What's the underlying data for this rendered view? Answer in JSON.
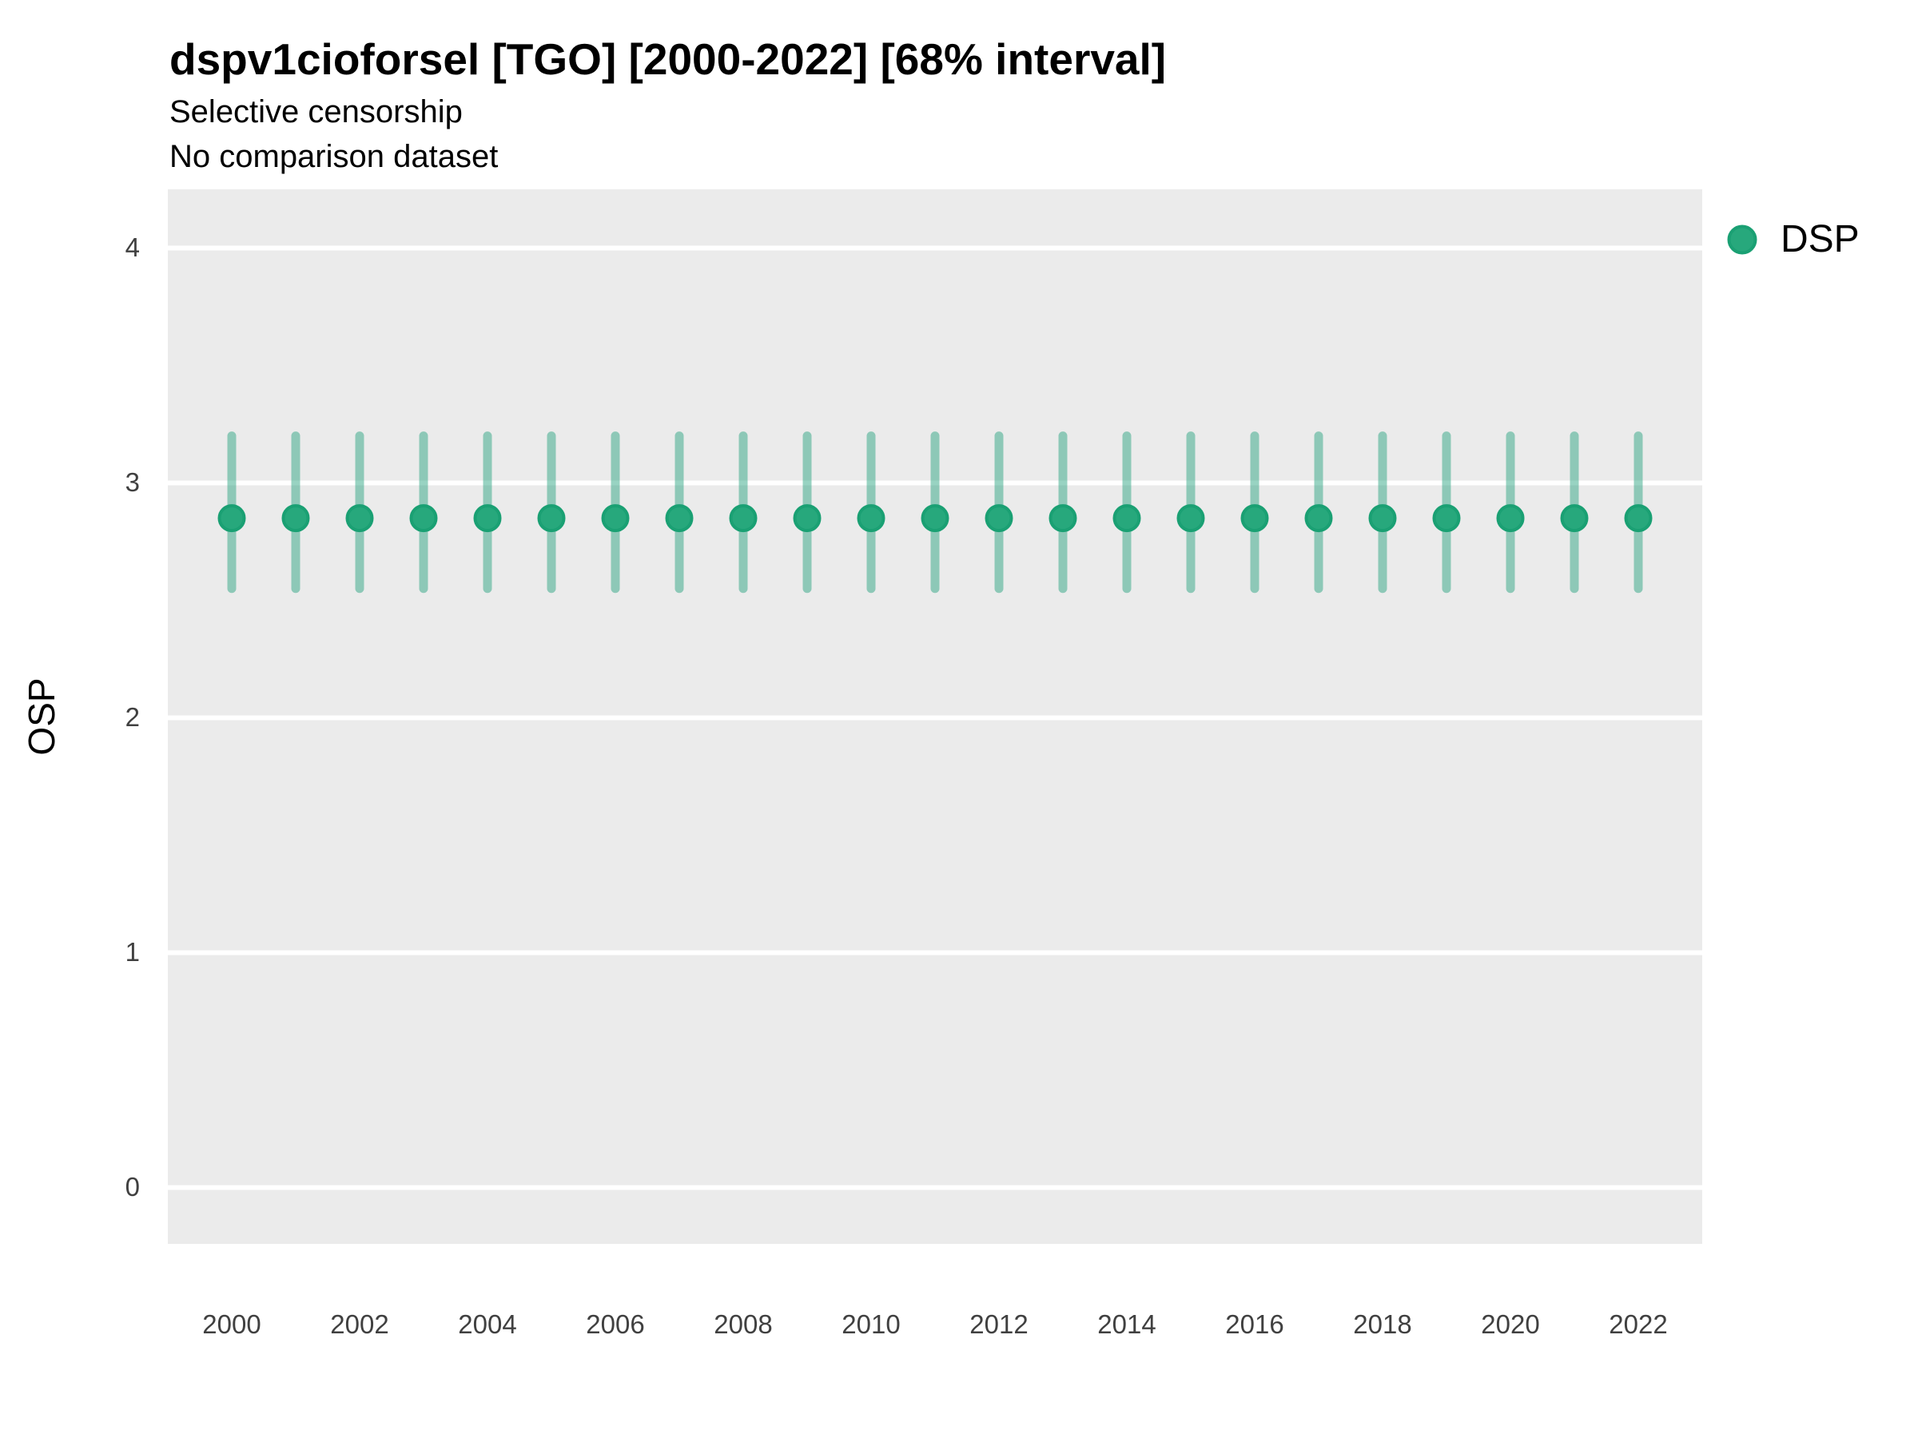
{
  "title": "dspv1cioforsel [TGO] [2000-2022] [68% interval]",
  "subtitle1": "Selective censorship",
  "subtitle2": "No comparison dataset",
  "y_axis_title": "OSP",
  "legend": {
    "position": "right",
    "items": [
      {
        "label": "DSP",
        "swatch": "circle-icon",
        "fill": "#27a87c",
        "stroke": "#1aa073"
      }
    ]
  },
  "colors": {
    "panel_background": "#EBEBEB",
    "gridline": "#FFFFFF",
    "point_fill": "#27a87c",
    "point_stroke": "#1aa073",
    "interval_bar": "rgba(27,158,119,0.45)",
    "tick_label": "#404040",
    "page_background": "#FFFFFF"
  },
  "chart_data": {
    "type": "scatter",
    "subtype": "pointrange (point with 68% interval bars)",
    "title": "dspv1cioforsel [TGO] [2000-2022] [68% interval]",
    "subtitle": "Selective censorship / No comparison dataset",
    "xlabel": "",
    "ylabel": "OSP",
    "interval": "68%",
    "grid": "major horizontal white gridlines on gray panel, no minor, no axis ticks",
    "legend_position": "right",
    "xlim": [
      1999,
      2023
    ],
    "ylim": [
      -0.24,
      4.25
    ],
    "x_ticks": [
      2000,
      2002,
      2004,
      2006,
      2008,
      2010,
      2012,
      2014,
      2016,
      2018,
      2020,
      2022
    ],
    "y_ticks": [
      0,
      1,
      2,
      3,
      4
    ],
    "series": [
      {
        "name": "DSP",
        "x": [
          2000,
          2001,
          2002,
          2003,
          2004,
          2005,
          2006,
          2007,
          2008,
          2009,
          2010,
          2011,
          2012,
          2013,
          2014,
          2015,
          2016,
          2017,
          2018,
          2019,
          2020,
          2021,
          2022
        ],
        "y": [
          2.85,
          2.85,
          2.85,
          2.85,
          2.85,
          2.85,
          2.85,
          2.85,
          2.85,
          2.85,
          2.85,
          2.85,
          2.85,
          2.85,
          2.85,
          2.85,
          2.85,
          2.85,
          2.85,
          2.85,
          2.85,
          2.85,
          2.85
        ],
        "y_low": [
          2.55,
          2.55,
          2.55,
          2.55,
          2.55,
          2.55,
          2.55,
          2.55,
          2.55,
          2.55,
          2.55,
          2.55,
          2.55,
          2.55,
          2.55,
          2.55,
          2.55,
          2.55,
          2.55,
          2.55,
          2.55,
          2.55,
          2.55
        ],
        "y_high": [
          3.2,
          3.2,
          3.2,
          3.2,
          3.2,
          3.2,
          3.2,
          3.2,
          3.2,
          3.2,
          3.2,
          3.2,
          3.2,
          3.2,
          3.2,
          3.2,
          3.2,
          3.2,
          3.2,
          3.2,
          3.2,
          3.2,
          3.2
        ]
      }
    ]
  }
}
